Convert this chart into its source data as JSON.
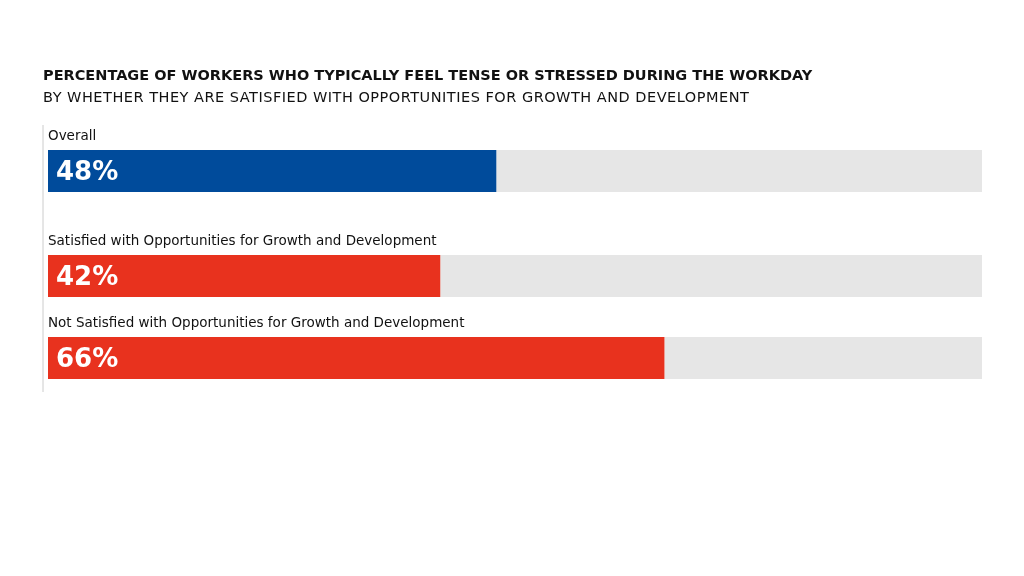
{
  "chart_data": {
    "type": "bar",
    "orientation": "horizontal",
    "title": "PERCENTAGE OF WORKERS WHO TYPICALLY FEEL TENSE OR STRESSED DURING THE WORKDAY",
    "subtitle": "BY WHETHER THEY ARE SATISFIED WITH OPPORTUNITIES FOR GROWTH AND DEVELOPMENT",
    "categories": [
      "Overall",
      "Satisfied with Opportunities for Growth and Development",
      "Not Satisfied with Opportunities for Growth and Development"
    ],
    "values": [
      48,
      42,
      66
    ],
    "colors": [
      "#004b9b",
      "#e8321e",
      "#e8321e"
    ],
    "value_labels": [
      "48%",
      "42%",
      "66%"
    ],
    "xlim": [
      0,
      100
    ]
  }
}
